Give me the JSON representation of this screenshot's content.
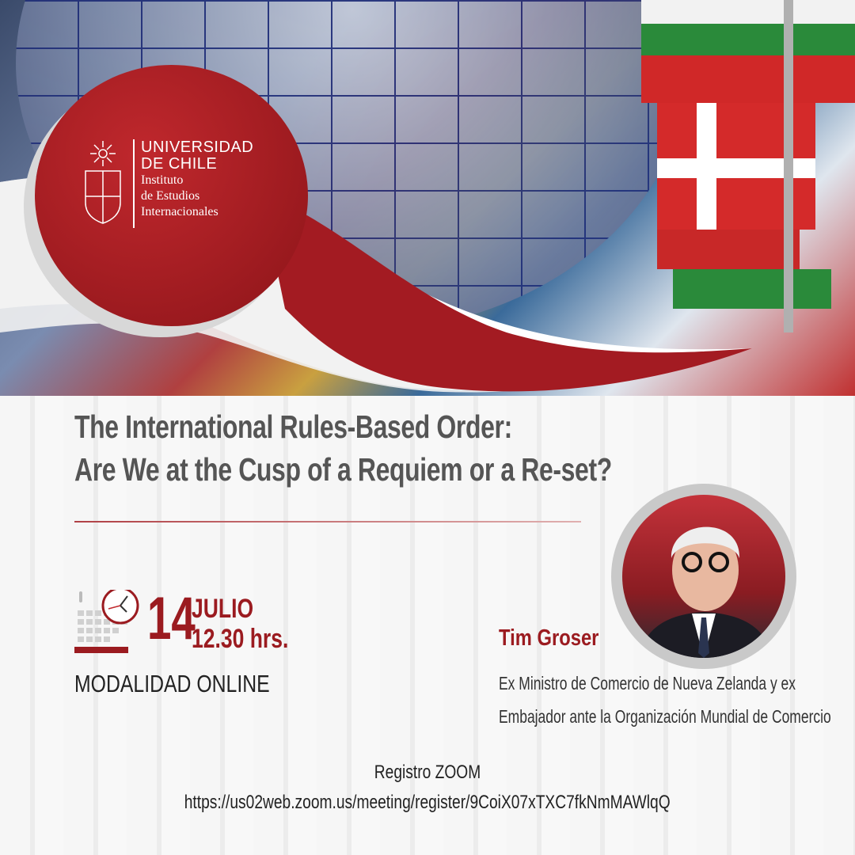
{
  "institution": {
    "name_line1": "UNIVERSIDAD",
    "name_line2": "DE CHILE",
    "unit_line1": "Instituto",
    "unit_line2": "de Estudios",
    "unit_line3": "Internacionales"
  },
  "event": {
    "title_line1": "The International Rules-Based Order:",
    "title_line2": "Are We at the Cusp of a Requiem or a Re-set?",
    "day": "14",
    "month": "JULIO",
    "time": "12.30 hrs.",
    "modality": "MODALIDAD ONLINE"
  },
  "speaker": {
    "name": "Tim Groser",
    "role_line1": "Ex Ministro de Comercio de Nueva Zelanda y ex",
    "role_line2": "Embajador ante la Organización Mundial de Comercio"
  },
  "registration": {
    "label": "Registro ZOOM",
    "url": "https://us02web.zoom.us/meeting/register/9CoiX07xTXC7fkNmMAWlqQ"
  },
  "colors": {
    "brand_red": "#9b1b20",
    "title_gray": "#555555"
  }
}
